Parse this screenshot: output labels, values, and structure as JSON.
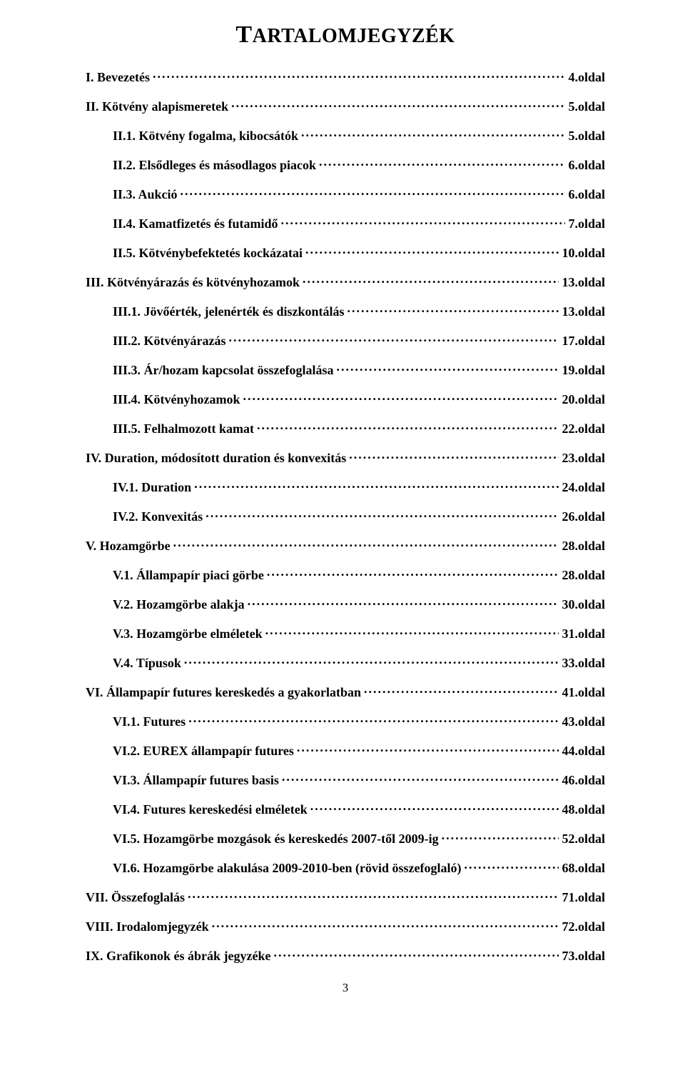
{
  "title_smallcaps_prefix": "T",
  "title_rest": "ARTALOMJEGYZÉK",
  "page_number": "3",
  "entries": [
    {
      "level": 1,
      "label": "I. Bevezetés",
      "page": "4.oldal"
    },
    {
      "level": 1,
      "label": "II. Kötvény alapismeretek",
      "page": "5.oldal"
    },
    {
      "level": 2,
      "label": "II.1. Kötvény fogalma, kibocsátók",
      "page": "5.oldal"
    },
    {
      "level": 2,
      "label": "II.2. Elsődleges és másodlagos piacok",
      "page": "6.oldal"
    },
    {
      "level": 2,
      "label": "II.3. Aukció",
      "page": "6.oldal"
    },
    {
      "level": 2,
      "label": "II.4. Kamatfizetés és futamidő",
      "page": "7.oldal"
    },
    {
      "level": 2,
      "label": "II.5. Kötvénybefektetés kockázatai",
      "page": "10.oldal"
    },
    {
      "level": 1,
      "label": "III. Kötvényárazás és kötvényhozamok",
      "page": "13.oldal"
    },
    {
      "level": 2,
      "label": "III.1. Jövőérték, jelenérték és diszkontálás",
      "page": "13.oldal"
    },
    {
      "level": 2,
      "label": "III.2. Kötvényárazás",
      "page": "17.oldal"
    },
    {
      "level": 2,
      "label": "III.3. Ár/hozam kapcsolat összefoglalása",
      "page": "19.oldal"
    },
    {
      "level": 2,
      "label": "III.4. Kötvényhozamok",
      "page": "20.oldal"
    },
    {
      "level": 2,
      "label": "III.5. Felhalmozott kamat",
      "page": "22.oldal"
    },
    {
      "level": 1,
      "label": "IV. Duration, módosított duration és konvexitás",
      "page": "23.oldal"
    },
    {
      "level": 2,
      "label": "IV.1. Duration",
      "page": "24.oldal"
    },
    {
      "level": 2,
      "label": "IV.2. Konvexitás",
      "page": "26.oldal"
    },
    {
      "level": 1,
      "label": "V. Hozamgörbe",
      "page": "28.oldal"
    },
    {
      "level": 2,
      "label": "V.1. Állampapír piaci görbe",
      "page": "28.oldal"
    },
    {
      "level": 2,
      "label": "V.2. Hozamgörbe alakja",
      "page": "30.oldal"
    },
    {
      "level": 2,
      "label": "V.3. Hozamgörbe elméletek",
      "page": "31.oldal"
    },
    {
      "level": 2,
      "label": "V.4. Típusok",
      "page": "33.oldal"
    },
    {
      "level": 1,
      "label": "VI. Állampapír futures kereskedés a gyakorlatban",
      "page": "41.oldal"
    },
    {
      "level": 2,
      "label": "VI.1. Futures",
      "page": "43.oldal"
    },
    {
      "level": 2,
      "label": "VI.2. EUREX állampapír futures",
      "page": "44.oldal"
    },
    {
      "level": 2,
      "label": "VI.3. Állampapír futures basis",
      "page": "46.oldal"
    },
    {
      "level": 2,
      "label": "VI.4. Futures kereskedési elméletek",
      "page": "48.oldal"
    },
    {
      "level": 2,
      "label": "VI.5. Hozamgörbe mozgások és kereskedés 2007-től 2009-ig",
      "page": "52.oldal"
    },
    {
      "level": 2,
      "label": "VI.6. Hozamgörbe alakulása 2009-2010-ben (rövid összefoglaló)",
      "page": "68.oldal"
    },
    {
      "level": 1,
      "label": "VII. Összefoglalás",
      "page": "71.oldal"
    },
    {
      "level": 1,
      "label": "VIII. Irodalomjegyzék",
      "page": "72.oldal"
    },
    {
      "level": 1,
      "label": "IX. Grafikonok és ábrák jegyzéke",
      "page": "73.oldal"
    }
  ]
}
